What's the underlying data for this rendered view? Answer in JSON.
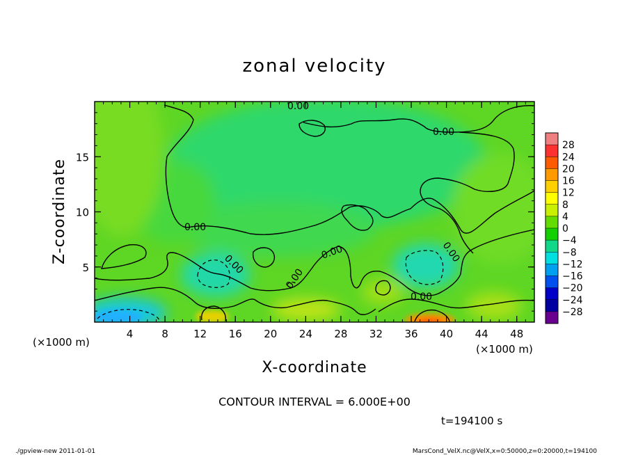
{
  "chart_data": {
    "type": "heatmap",
    "title": "zonal velocity",
    "xlabel": "X-coordinate",
    "ylabel": "Z-coordinate",
    "x_unit": "(×1000 m)",
    "y_unit": "(×1000 m)",
    "xlim": [
      0,
      50
    ],
    "ylim": [
      0,
      20
    ],
    "x_ticks": [
      4,
      8,
      12,
      16,
      20,
      24,
      28,
      32,
      36,
      40,
      44,
      48
    ],
    "y_ticks": [
      5,
      10,
      15
    ],
    "contour_interval_label": "CONTOUR INTERVAL = 6.000E+00",
    "contour_labels": [
      "0.00",
      "0.00",
      "0.00",
      "0.00",
      "0.00",
      "0.00",
      "0.00",
      "0.00"
    ],
    "time_label": "t=194100 s",
    "colorbar": {
      "levels": [
        28,
        24,
        20,
        16,
        12,
        8,
        4,
        0,
        -4,
        -8,
        -12,
        -16,
        -20,
        -24,
        -28
      ],
      "level_labels": [
        "28",
        "24",
        "20",
        "16",
        "12",
        "8",
        "4",
        "0",
        "−4",
        "−8",
        "−12",
        "−16",
        "−20",
        "−24",
        "−28"
      ],
      "colors": [
        "#f08080",
        "#ff3030",
        "#ff5a00",
        "#ff9a00",
        "#ffd000",
        "#ffff00",
        "#c8f000",
        "#64dc00",
        "#14d000",
        "#10d888",
        "#00e0e0",
        "#00a0f0",
        "#0050f0",
        "#0000c8",
        "#0000a0",
        "#6a0090"
      ]
    },
    "grid": false,
    "legend_position": "right"
  },
  "footer": {
    "left": "./gpview-new   2011-01-01",
    "right": "MarsCond_VelX.nc@VelX,x=0:50000,z=0:20000,t=194100"
  }
}
